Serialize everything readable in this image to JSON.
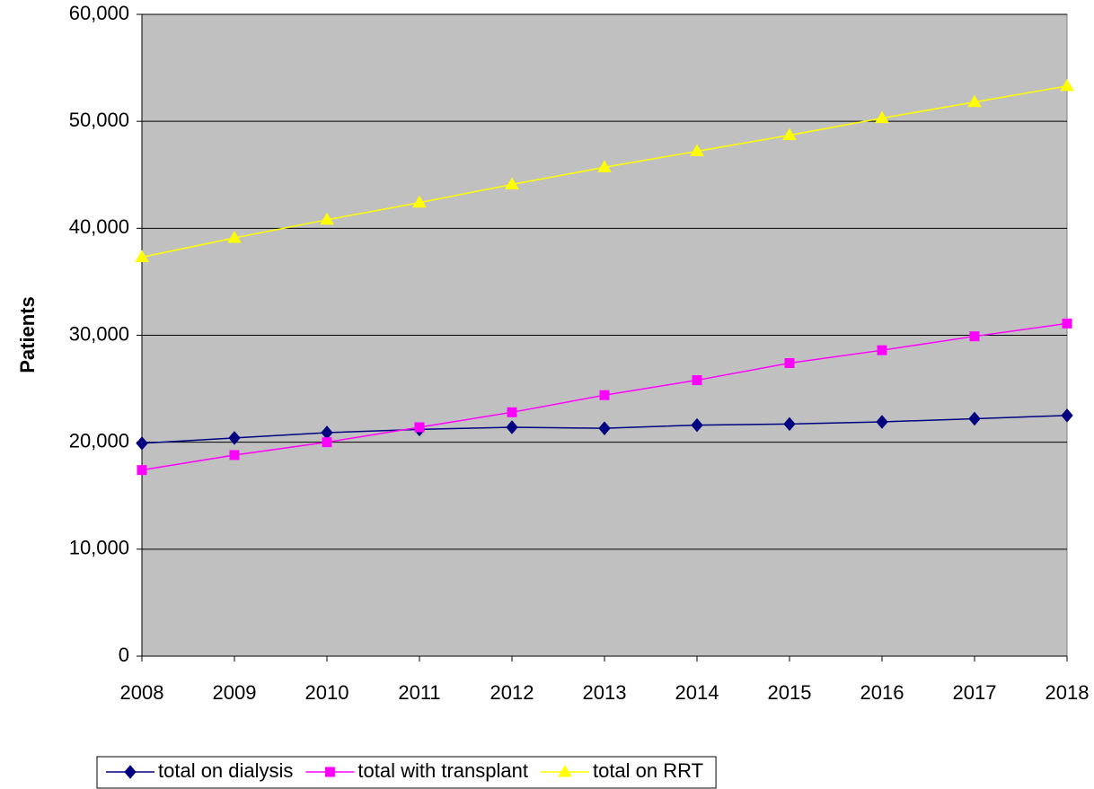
{
  "chart_data": {
    "type": "line",
    "y_label": "Patients",
    "categories": [
      "2008",
      "2009",
      "2010",
      "2011",
      "2012",
      "2013",
      "2014",
      "2015",
      "2016",
      "2017",
      "2018"
    ],
    "series": [
      {
        "name": "total on dialysis",
        "color": "#000080",
        "marker": "diamond",
        "values": [
          19900,
          20400,
          20900,
          21200,
          21400,
          21300,
          21600,
          21700,
          21900,
          22200,
          22500
        ]
      },
      {
        "name": "total with transplant",
        "color": "#ff00ff",
        "marker": "square",
        "values": [
          17400,
          18800,
          20000,
          21400,
          22800,
          24400,
          25800,
          27400,
          28600,
          29900,
          31100
        ]
      },
      {
        "name": "total on RRT",
        "color": "#ffff00",
        "marker": "triangle",
        "values": [
          37300,
          39100,
          40800,
          42400,
          44100,
          45700,
          47200,
          48700,
          50300,
          51800,
          53300
        ]
      }
    ],
    "ylim": [
      0,
      60000
    ],
    "yticks": [
      0,
      {
        "value": 10000,
        "label": "10,000"
      },
      {
        "value": 20000,
        "label": "20,000"
      },
      {
        "value": 30000,
        "label": "30,000"
      },
      {
        "value": 40000,
        "label": "40,000"
      },
      {
        "value": 50000,
        "label": "50,000"
      },
      {
        "value": 60000,
        "label": "60,000"
      }
    ],
    "grid": true,
    "plot_background": "#c0c0c0",
    "legend": "bottom"
  }
}
